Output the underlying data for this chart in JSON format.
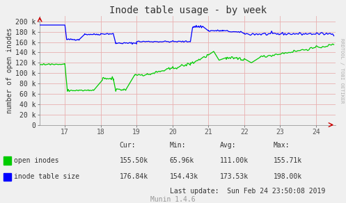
{
  "title": "Inode table usage - by week",
  "ylabel": "number of open inodes",
  "bg_color": "#f0f0f0",
  "plot_bg_color": "#f0f0f0",
  "grid_color": "#e8b0b0",
  "x_ticks": [
    17,
    18,
    19,
    20,
    21,
    22,
    23,
    24
  ],
  "x_min": 16.3,
  "x_max": 24.55,
  "y_min": 0,
  "y_max": 210000,
  "y_ticks": [
    0,
    20000,
    40000,
    60000,
    80000,
    100000,
    120000,
    140000,
    160000,
    180000,
    200000
  ],
  "green_label": "open inodes",
  "blue_label": "inode table size",
  "green_color": "#00cc00",
  "blue_color": "#0000ff",
  "legend_header": [
    "Cur:",
    "Min:",
    "Avg:",
    "Max:"
  ],
  "legend_cur_green": "155.50k",
  "legend_min_green": "65.96k",
  "legend_avg_green": "111.00k",
  "legend_max_green": "155.71k",
  "legend_cur_blue": "176.84k",
  "legend_min_blue": "154.43k",
  "legend_avg_blue": "173.53k",
  "legend_max_blue": "198.00k",
  "last_update": "Last update:  Sun Feb 24 23:50:08 2019",
  "munin_version": "Munin 1.4.6",
  "right_label": "RRDTOOL / TOBI OETIKER",
  "title_fontsize": 10,
  "axis_fontsize": 7,
  "legend_fontsize": 7,
  "arrow_color": "#cc0000"
}
